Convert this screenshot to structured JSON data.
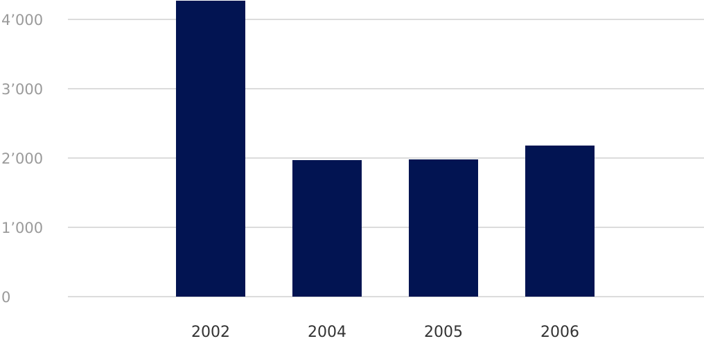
{
  "chart_data": {
    "type": "bar",
    "categories": [
      "2002",
      "2004",
      "2005",
      "2006"
    ],
    "values": [
      4270,
      1970,
      1980,
      2180
    ],
    "color": "#021452",
    "ylim": [
      0,
      4280
    ],
    "yticks": [
      0,
      {
        "value": 1000,
        "label": "1’000"
      },
      {
        "value": 2000,
        "label": "2’000"
      },
      {
        "value": 3000,
        "label": "3’000"
      },
      {
        "value": 4000,
        "label": "4’000"
      }
    ],
    "grid": true
  }
}
